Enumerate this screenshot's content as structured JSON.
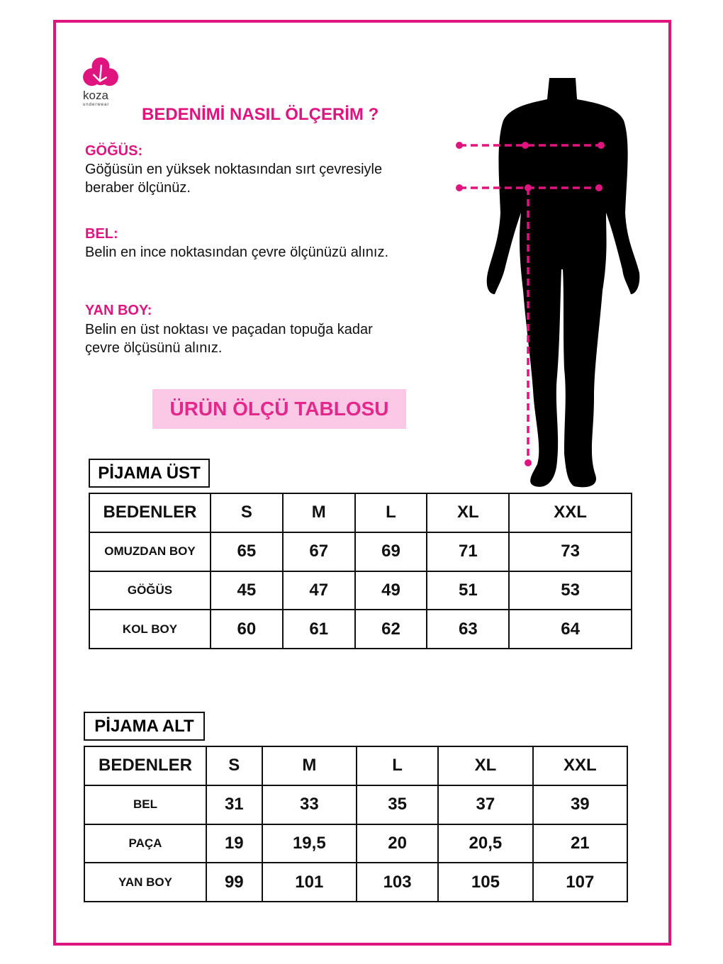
{
  "brand": {
    "name": "koza",
    "tagline": "underwear",
    "color": "#e0147f"
  },
  "title": "BEDENİMİ NASIL ÖLÇERİM ?",
  "sections": [
    {
      "heading": "GÖĞÜS:",
      "lines": [
        "Göğüsün en yüksek noktasından sırt çevresiyle",
        "beraber ölçünüz."
      ]
    },
    {
      "heading": "BEL:",
      "lines": [
        "Belin en ince noktasından çevre ölçünüzü alınız."
      ]
    },
    {
      "heading": "YAN BOY:",
      "lines": [
        "Belin en üst noktası ve paçadan topuğa kadar",
        "çevre ölçüsünü alınız."
      ]
    }
  ],
  "banner": "ÜRÜN ÖLÇÜ TABLOSU",
  "tables": [
    {
      "label": "PİJAMA ÜST",
      "header": [
        "BEDENLER",
        "S",
        "M",
        "L",
        "XL",
        "XXL"
      ],
      "rows": [
        [
          "OMUZDAN BOY",
          "65",
          "67",
          "69",
          "71",
          "73"
        ],
        [
          "GÖĞÜS",
          "45",
          "47",
          "49",
          "51",
          "53"
        ],
        [
          "KOL BOY",
          "60",
          "61",
          "62",
          "63",
          "64"
        ]
      ]
    },
    {
      "label": "PİJAMA ALT",
      "header": [
        "BEDENLER",
        "S",
        "M",
        "L",
        "XL",
        "XXL"
      ],
      "rows": [
        [
          "BEL",
          "31",
          "33",
          "35",
          "37",
          "39"
        ],
        [
          "PAÇA",
          "19",
          "19,5",
          "20",
          "20,5",
          "21"
        ],
        [
          "YAN BOY",
          "99",
          "101",
          "103",
          "105",
          "107"
        ]
      ]
    }
  ]
}
